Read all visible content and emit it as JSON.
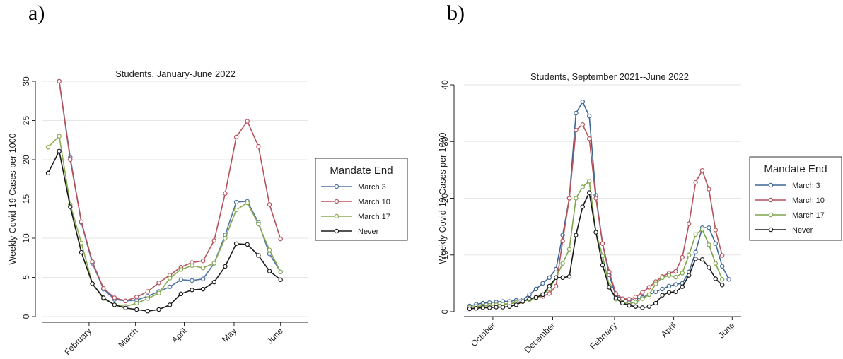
{
  "panels": {
    "a": "a)",
    "b": "b)"
  },
  "chart_data": [
    {
      "type": "line",
      "title": "Students, January-June 2022",
      "ylabel": "Weekly Covid-19 Cases per 1000",
      "xlabel": "",
      "ylim": [
        0,
        30
      ],
      "yticks": [
        0,
        5,
        10,
        15,
        20,
        25,
        30
      ],
      "xlim": [
        0,
        23
      ],
      "xticks": [
        {
          "label": "February",
          "x": 3.7
        },
        {
          "label": "March",
          "x": 7.9
        },
        {
          "label": "April",
          "x": 12.3
        },
        {
          "label": "May",
          "x": 16.8
        },
        {
          "label": "June",
          "x": 21.0
        }
      ],
      "x": [
        0,
        1,
        2,
        3,
        4,
        5,
        6,
        7,
        8,
        9,
        10,
        11,
        12,
        13,
        14,
        15,
        16,
        17,
        18,
        19,
        20,
        21,
        22
      ],
      "legend": {
        "title": "Mandate End",
        "placement": "right"
      },
      "series": [
        {
          "name": "March 3",
          "color": "#4f74a3",
          "values": [
            null,
            30.0,
            20.3,
            12.0,
            6.8,
            3.5,
            2.2,
            2.0,
            2.1,
            2.6,
            3.2,
            3.8,
            4.7,
            4.6,
            4.8,
            6.8,
            10.4,
            14.6,
            14.7,
            12.0,
            8.0,
            5.7,
            null
          ]
        },
        {
          "name": "March 10",
          "color": "#b5525c",
          "values": [
            null,
            30.0,
            20.0,
            12.1,
            7.0,
            3.6,
            2.4,
            2.0,
            2.5,
            3.2,
            4.3,
            5.3,
            6.3,
            6.9,
            7.1,
            9.7,
            15.7,
            22.9,
            24.9,
            21.7,
            14.3,
            9.9,
            null
          ]
        },
        {
          "name": "March 17",
          "color": "#8aab52",
          "values": [
            21.6,
            23.0,
            14.3,
            9.4,
            4.2,
            2.3,
            1.5,
            1.3,
            1.7,
            2.3,
            3.0,
            4.9,
            6.0,
            6.5,
            6.2,
            6.8,
            10.0,
            13.6,
            14.5,
            11.8,
            8.5,
            5.7,
            null
          ]
        },
        {
          "name": "Never",
          "color": "#1a1a1a",
          "values": [
            18.3,
            21.1,
            14.0,
            8.2,
            4.2,
            2.4,
            1.5,
            1.1,
            0.9,
            0.7,
            0.9,
            1.5,
            2.9,
            3.4,
            3.5,
            4.4,
            6.4,
            9.3,
            9.2,
            7.8,
            5.8,
            4.7,
            null
          ]
        }
      ]
    },
    {
      "type": "line",
      "title": "Students, September 2021--June 2022",
      "ylabel": "Weekly Covid-19 Cases per 1000",
      "xlabel": "",
      "ylim": [
        0,
        40
      ],
      "yticks": [
        0,
        10,
        20,
        30,
        40
      ],
      "xlim": [
        0,
        40
      ],
      "xticks": [
        {
          "label": "October",
          "x": 3.5
        },
        {
          "label": "December",
          "x": 12.5
        },
        {
          "label": "February",
          "x": 21.8
        },
        {
          "label": "April",
          "x": 30.7
        },
        {
          "label": "June",
          "x": 39.5
        }
      ],
      "x": [
        0,
        1,
        2,
        3,
        4,
        5,
        6,
        7,
        8,
        9,
        10,
        11,
        12,
        13,
        14,
        15,
        16,
        17,
        18,
        19,
        20,
        21,
        22,
        23,
        24,
        25,
        26,
        27,
        28,
        29,
        30,
        31,
        32,
        33,
        34,
        35,
        36,
        37,
        38,
        39,
        40
      ],
      "legend": {
        "title": "Mandate End",
        "placement": "right"
      },
      "series": [
        {
          "name": "March 3",
          "color": "#3f6796",
          "values": [
            1.0,
            1.3,
            1.5,
            1.6,
            1.7,
            1.8,
            1.8,
            2.0,
            2.1,
            3.0,
            4.0,
            5.0,
            6.0,
            7.5,
            13.5,
            20.0,
            35.0,
            37.0,
            34.5,
            20.5,
            12.0,
            6.5,
            2.8,
            2.2,
            2.0,
            2.2,
            2.5,
            3.0,
            3.5,
            4.0,
            4.5,
            4.8,
            5.0,
            7.0,
            10.5,
            14.8,
            14.8,
            12.0,
            8.0,
            5.7,
            null
          ]
        },
        {
          "name": "March 10",
          "color": "#b5525c",
          "values": [
            0.7,
            0.9,
            1.0,
            1.1,
            1.2,
            1.3,
            1.4,
            1.6,
            1.8,
            2.2,
            2.6,
            2.7,
            3.2,
            4.5,
            12.5,
            20.0,
            32.0,
            33.0,
            30.5,
            20.0,
            12.0,
            7.0,
            3.2,
            2.3,
            2.2,
            2.6,
            3.4,
            4.3,
            5.3,
            6.2,
            6.8,
            7.1,
            9.6,
            15.5,
            22.8,
            24.9,
            21.6,
            14.4,
            9.9,
            null,
            null
          ]
        },
        {
          "name": "March 17",
          "color": "#7fa64a",
          "values": [
            0.8,
            0.9,
            1.0,
            1.1,
            1.2,
            1.3,
            1.4,
            1.6,
            1.8,
            2.1,
            2.4,
            3.0,
            4.0,
            6.0,
            8.5,
            11.0,
            20.0,
            22.0,
            23.0,
            14.0,
            9.8,
            4.6,
            2.2,
            1.6,
            1.4,
            1.7,
            2.3,
            3.0,
            4.9,
            6.0,
            6.4,
            6.1,
            6.8,
            10.0,
            13.6,
            14.5,
            11.8,
            8.5,
            5.7,
            null,
            null
          ]
        },
        {
          "name": "Never",
          "color": "#1a1a1a",
          "values": [
            0.5,
            0.6,
            0.7,
            0.7,
            0.8,
            0.8,
            0.9,
            1.2,
            1.8,
            2.3,
            2.5,
            3.0,
            4.5,
            6.0,
            6.0,
            6.2,
            13.5,
            18.5,
            21.0,
            14.0,
            8.2,
            4.3,
            2.4,
            1.5,
            1.1,
            0.9,
            0.7,
            0.9,
            1.5,
            2.9,
            3.4,
            3.5,
            4.4,
            6.4,
            9.3,
            9.2,
            7.8,
            5.8,
            4.7,
            null,
            null
          ]
        }
      ]
    }
  ]
}
